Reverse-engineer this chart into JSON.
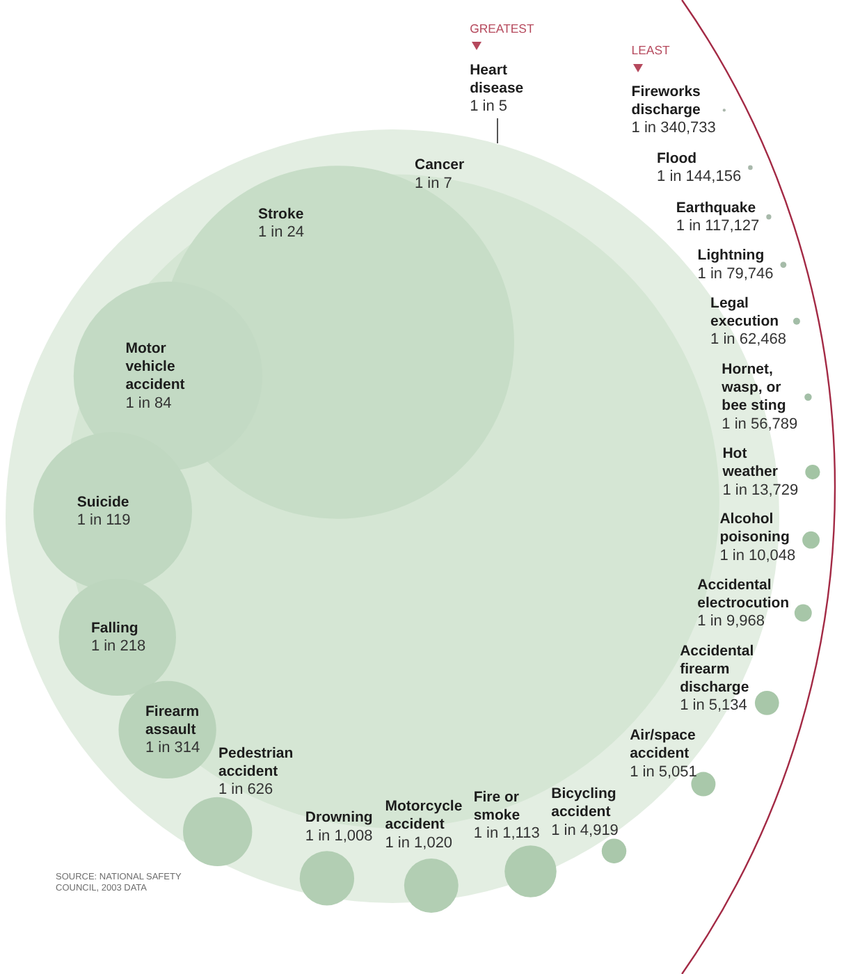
{
  "chart_data": {
    "type": "other",
    "categories": [
      "Heart disease",
      "Cancer",
      "Stroke",
      "Motor vehicle accident",
      "Suicide",
      "Falling",
      "Firearm assault",
      "Pedestrian accident",
      "Drowning",
      "Motorcycle accident",
      "Fire or smoke",
      "Bicycling accident",
      "Air/space accident",
      "Accidental firearm discharge",
      "Accidental electrocution",
      "Alcohol poisoning",
      "Hot weather",
      "Hornet, wasp, or bee sting",
      "Legal execution",
      "Lightning",
      "Earthquake",
      "Flood",
      "Fireworks discharge"
    ],
    "values": [
      5,
      7,
      24,
      84,
      119,
      218,
      314,
      626,
      1008,
      1020,
      1113,
      4919,
      5051,
      5134,
      9968,
      10048,
      13729,
      56789,
      62468,
      79746,
      117127,
      144156,
      340733
    ],
    "value_labels": [
      "1 in 5",
      "1 in 7",
      "1 in 24",
      "1 in 84",
      "1 in 119",
      "1 in 218",
      "1 in 314",
      "1 in 626",
      "1 in 1,008",
      "1 in 1,020",
      "1 in 1,113",
      "1 in 4,919",
      "1 in 5,051",
      "1 in 5,134",
      "1 in 9,968",
      "1 in 10,048",
      "1 in 13,729",
      "1 in 56,789",
      "1 in 62,468",
      "1 in 79,746",
      "1 in 117,127",
      "1 in 144,156",
      "1 in 340,733"
    ],
    "colors": [
      "#e3eee2",
      "#d5e6d4",
      "#c7ddc7",
      "#c3dac4",
      "#c0d8c1",
      "#bdd6be",
      "#b9d3ba",
      "#b5d0b6",
      "#b2ceb3",
      "#b2ceb3",
      "#afccb0",
      "#aac8ab",
      "#a9c8aa",
      "#a8c7a9",
      "#a7c6a8",
      "#a5c5a6",
      "#a3c4a4",
      "#a3bfa7",
      "#a3bda7",
      "#a5bba8",
      "#a7b9aa",
      "#a8b8ab",
      "#aab7ac"
    ],
    "annotations": [
      "GREATEST",
      "LEAST",
      "SOURCE: NATIONAL SAFETY COUNCIL, 2003 DATA"
    ]
  }
}
